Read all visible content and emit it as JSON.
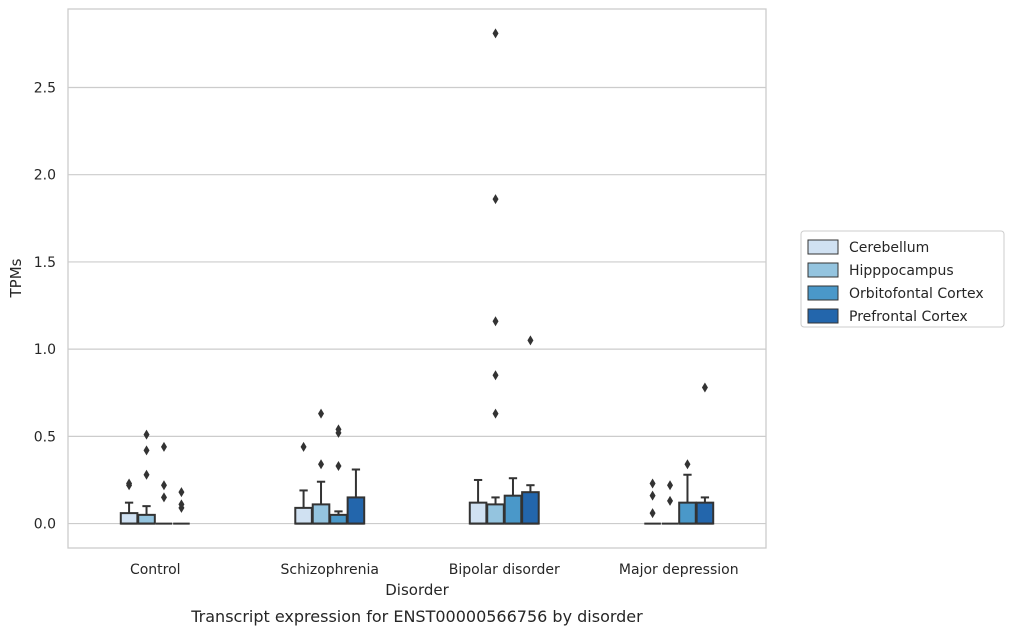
{
  "caption": "Transcript expression for ENST00000566756 by disorder",
  "chart_data": {
    "type": "box",
    "title": "",
    "xlabel": "Disorder",
    "ylabel": "TPMs",
    "ylim": [
      -0.14,
      2.95
    ],
    "yticks": [
      0.0,
      0.5,
      1.0,
      1.5,
      2.0,
      2.5
    ],
    "ytick_labels": [
      "0.0",
      "0.5",
      "1.0",
      "1.5",
      "2.0",
      "2.5"
    ],
    "grid": "horizontal",
    "legend_position": "right",
    "categories": [
      "Control",
      "Schizophrenia",
      "Bipolar disorder",
      "Major depression"
    ],
    "series": [
      {
        "name": "Cerebellum",
        "color": "#d0e1f2",
        "boxes": [
          {
            "q1": 0.0,
            "median": 0.0,
            "q3": 0.06,
            "whisker_low": 0.0,
            "whisker_high": 0.12,
            "outliers": [
              0.22,
              0.23
            ]
          },
          {
            "q1": 0.0,
            "median": 0.0,
            "q3": 0.09,
            "whisker_low": 0.0,
            "whisker_high": 0.19,
            "outliers": [
              0.44
            ]
          },
          {
            "q1": 0.0,
            "median": 0.0,
            "q3": 0.12,
            "whisker_low": 0.0,
            "whisker_high": 0.25,
            "outliers": []
          },
          {
            "q1": 0.0,
            "median": 0.0,
            "q3": 0.0,
            "whisker_low": 0.0,
            "whisker_high": 0.0,
            "outliers": [
              0.06,
              0.16,
              0.23
            ]
          }
        ]
      },
      {
        "name": "Hipppocampus",
        "color": "#94c4df",
        "boxes": [
          {
            "q1": 0.0,
            "median": 0.0,
            "q3": 0.05,
            "whisker_low": 0.0,
            "whisker_high": 0.1,
            "outliers": [
              0.28,
              0.42,
              0.51
            ]
          },
          {
            "q1": 0.0,
            "median": 0.0,
            "q3": 0.11,
            "whisker_low": 0.0,
            "whisker_high": 0.24,
            "outliers": [
              0.34,
              0.63
            ]
          },
          {
            "q1": 0.0,
            "median": 0.0,
            "q3": 0.11,
            "whisker_low": 0.0,
            "whisker_high": 0.15,
            "outliers": [
              0.63,
              0.85,
              1.16,
              1.86,
              2.81
            ]
          },
          {
            "q1": 0.0,
            "median": 0.0,
            "q3": 0.0,
            "whisker_low": 0.0,
            "whisker_high": 0.0,
            "outliers": [
              0.13,
              0.22
            ]
          }
        ]
      },
      {
        "name": "Orbitofontal Cortex",
        "color": "#4a98c9",
        "boxes": [
          {
            "q1": 0.0,
            "median": 0.0,
            "q3": 0.0,
            "whisker_low": 0.0,
            "whisker_high": 0.0,
            "outliers": [
              0.15,
              0.22,
              0.44
            ]
          },
          {
            "q1": 0.0,
            "median": 0.0,
            "q3": 0.05,
            "whisker_low": 0.0,
            "whisker_high": 0.07,
            "outliers": [
              0.33,
              0.52,
              0.54
            ]
          },
          {
            "q1": 0.0,
            "median": 0.0,
            "q3": 0.16,
            "whisker_low": 0.0,
            "whisker_high": 0.26,
            "outliers": []
          },
          {
            "q1": 0.0,
            "median": 0.0,
            "q3": 0.12,
            "whisker_low": 0.0,
            "whisker_high": 0.28,
            "outliers": [
              0.34
            ]
          }
        ]
      },
      {
        "name": "Prefrontal Cortex",
        "color": "#2366ac",
        "boxes": [
          {
            "q1": 0.0,
            "median": 0.0,
            "q3": 0.0,
            "whisker_low": 0.0,
            "whisker_high": 0.0,
            "outliers": [
              0.09,
              0.11,
              0.18
            ]
          },
          {
            "q1": 0.0,
            "median": 0.0,
            "q3": 0.15,
            "whisker_low": 0.0,
            "whisker_high": 0.31,
            "outliers": []
          },
          {
            "q1": 0.0,
            "median": 0.0,
            "q3": 0.18,
            "whisker_low": 0.0,
            "whisker_high": 0.22,
            "outliers": [
              1.05
            ]
          },
          {
            "q1": 0.0,
            "median": 0.0,
            "q3": 0.12,
            "whisker_low": 0.0,
            "whisker_high": 0.15,
            "outliers": [
              0.78
            ]
          }
        ]
      }
    ]
  }
}
